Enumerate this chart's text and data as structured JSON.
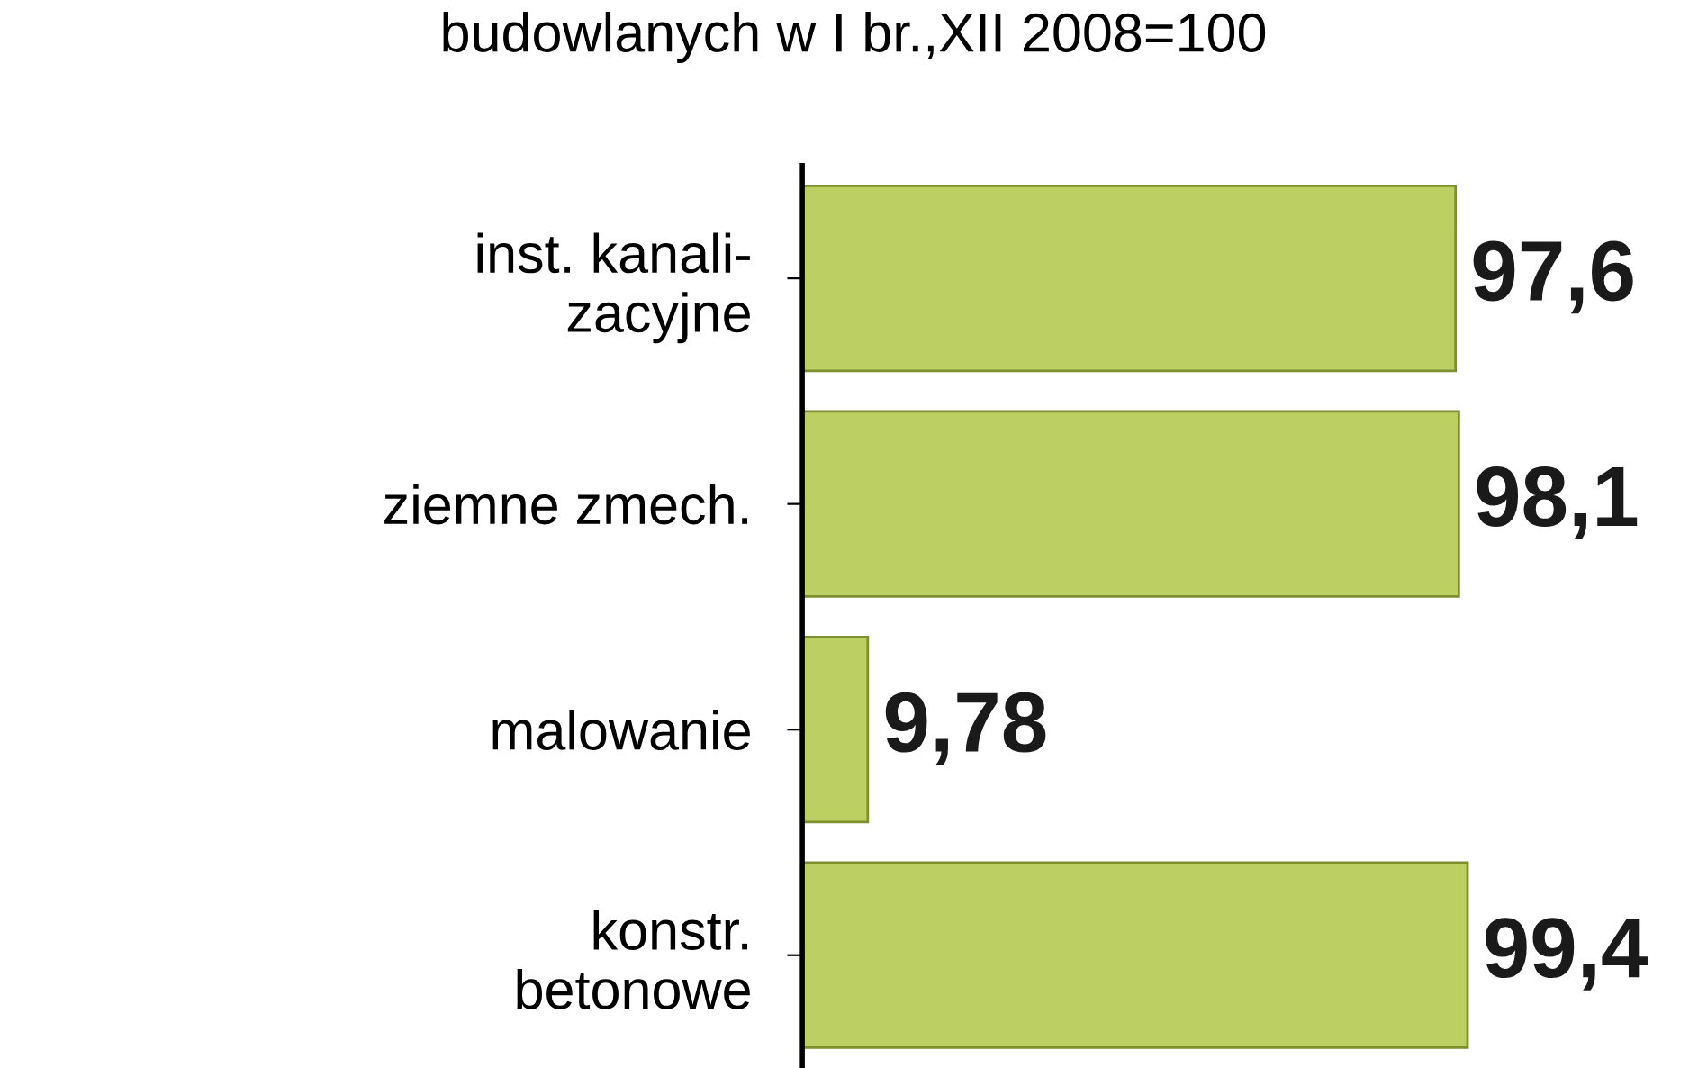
{
  "chart_data": {
    "type": "bar",
    "orientation": "horizontal",
    "title": "budowlanych w I br.,XII 2008=100",
    "categories": [
      "inst. kanali-\nzacyjne",
      "ziemne zmech.",
      "malowanie",
      "konstr.\nbetonowe"
    ],
    "values": [
      97.6,
      98.1,
      9.78,
      99.4
    ],
    "value_labels": [
      "97,6",
      "98,1",
      "9,78",
      "99,4"
    ],
    "tick_labels": "y",
    "color": "#bccf62"
  }
}
